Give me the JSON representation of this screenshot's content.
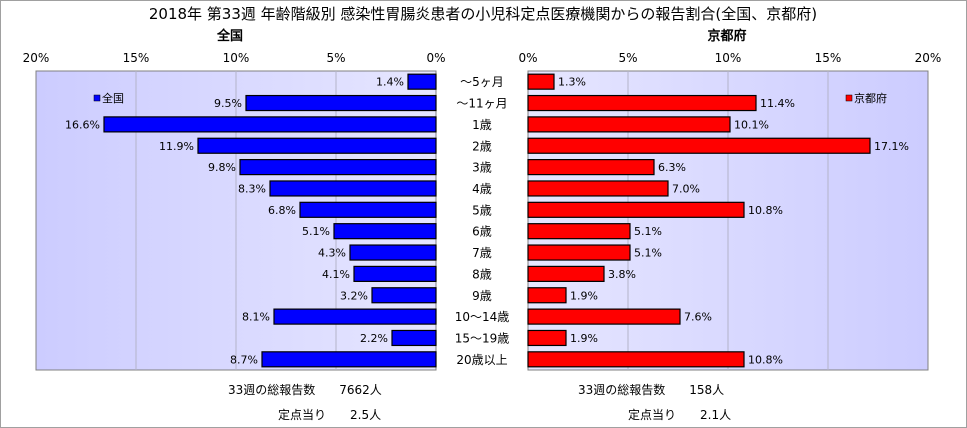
{
  "chart_data": {
    "type": "bar",
    "title": "2018年 第33週 年齢階級別 感染性胃腸炎患者の小児科定点医療機関からの報告割合(全国、京都府)",
    "categories": [
      "～5ヶ月",
      "～11ヶ月",
      "1歳",
      "2歳",
      "3歳",
      "4歳",
      "5歳",
      "6歳",
      "7歳",
      "8歳",
      "9歳",
      "10～14歳",
      "15～19歳",
      "20歳以上"
    ],
    "panels": [
      {
        "name": "全国",
        "legend": "全国",
        "color": "#0000ff",
        "direction": "reversed",
        "xlim": [
          0,
          20
        ],
        "ticks": [
          "0%",
          "5%",
          "10%",
          "15%",
          "20%"
        ],
        "values": [
          1.4,
          9.5,
          16.6,
          11.9,
          9.8,
          8.3,
          6.8,
          5.1,
          4.3,
          4.1,
          3.2,
          8.1,
          2.2,
          8.7
        ],
        "data_labels": [
          "1.4%",
          "9.5%",
          "16.6%",
          "11.9%",
          "9.8%",
          "8.3%",
          "6.8%",
          "5.1%",
          "4.3%",
          "4.1%",
          "3.2%",
          "8.1%",
          "2.2%",
          "8.7%"
        ]
      },
      {
        "name": "京都府",
        "legend": "京都府",
        "color": "#ff0000",
        "direction": "normal",
        "xlim": [
          0,
          20
        ],
        "ticks": [
          "0%",
          "5%",
          "10%",
          "15%",
          "20%"
        ],
        "values": [
          1.3,
          11.4,
          10.1,
          17.1,
          6.3,
          7.0,
          10.8,
          5.1,
          5.1,
          3.8,
          1.9,
          7.6,
          1.9,
          10.8
        ],
        "data_labels": [
          "1.3%",
          "11.4%",
          "10.1%",
          "17.1%",
          "6.3%",
          "7.0%",
          "10.8%",
          "5.1%",
          "5.1%",
          "3.8%",
          "1.9%",
          "7.6%",
          "1.9%",
          "10.8%"
        ]
      }
    ],
    "grid": true,
    "legend_placement": "top-left (全国), top-right (京都府)"
  },
  "footer": {
    "national_total": "33週の総報告数　　7662人",
    "national_per_site": "定点当り　　2.5人",
    "kyoto_total": "33週の総報告数　　158人",
    "kyoto_per_site": "定点当り　　2.1人"
  }
}
